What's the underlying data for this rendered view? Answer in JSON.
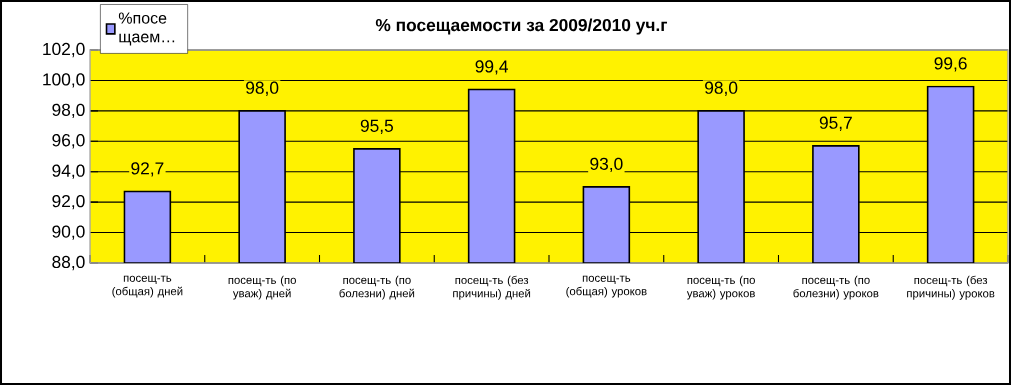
{
  "chart_data": {
    "type": "bar",
    "title": "%  посещаемости за  2009/2010 уч.г",
    "categories": [
      "посещ-ть (общая) дней",
      "посещ-ть (по уваж) дней",
      "посещ-ть (по болезни) дней",
      "посещ-ть (без причины) дней",
      "посещ-ть (общая) уроков",
      "посещ-ть (по уваж) уроков",
      "посещ-ть (по болезни) уроков",
      "посещ-ть (без причины) уроков"
    ],
    "series": [
      {
        "name": "%посе щаем…",
        "color": "#9999ff",
        "values": [
          92.7,
          98.0,
          95.5,
          99.4,
          93.0,
          98.0,
          95.7,
          99.6
        ],
        "value_labels": [
          "92,7",
          "98,0",
          "95,5",
          "99,4",
          "93,0",
          "98,0",
          "95,7",
          "99,6"
        ]
      }
    ],
    "ylim": [
      88,
      102
    ],
    "yticks": [
      {
        "value": 88,
        "label": "88,0"
      },
      {
        "value": 90,
        "label": "90,0"
      },
      {
        "value": 92,
        "label": "92,0"
      },
      {
        "value": 94,
        "label": "94,0"
      },
      {
        "value": 96,
        "label": "96,0"
      },
      {
        "value": 98,
        "label": "98,0"
      },
      {
        "value": 100,
        "label": "100,0"
      },
      {
        "value": 102,
        "label": "102,0"
      }
    ],
    "grid": "y",
    "legend": "top left"
  }
}
